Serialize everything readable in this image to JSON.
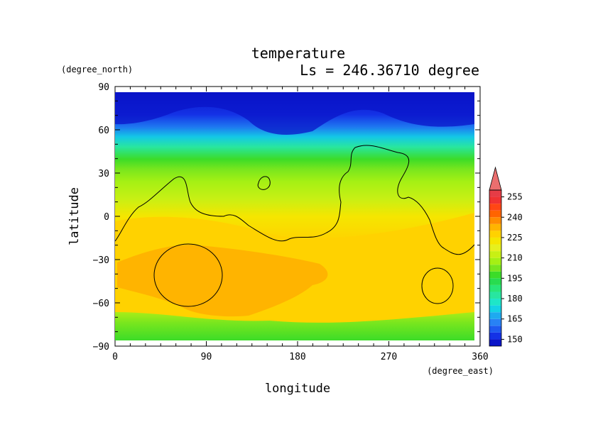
{
  "chart_data": {
    "type": "heatmap",
    "title": "temperature",
    "subtitle": "Ls = 246.36710 degree",
    "xlabel": "longitude",
    "ylabel": "latitude",
    "x_units": "(degree_east)",
    "y_units": "(degree_north)",
    "xlim": [
      0,
      360
    ],
    "ylim": [
      -90,
      90
    ],
    "x_ticks": [
      0,
      90,
      180,
      270,
      360
    ],
    "y_ticks": [
      90,
      60,
      30,
      0,
      -30,
      -60,
      -90
    ],
    "x_tick_labels": [
      "0",
      "90",
      "180",
      "270",
      "360"
    ],
    "y_tick_labels": [
      "90",
      "60",
      "30",
      "0",
      "−30",
      "−60",
      "−90"
    ],
    "colorbar": {
      "labels": [
        "150",
        "165",
        "180",
        "195",
        "210",
        "225",
        "240",
        "255"
      ],
      "levels": [
        145,
        150,
        155,
        160,
        165,
        170,
        175,
        180,
        185,
        190,
        195,
        200,
        205,
        210,
        215,
        220,
        225,
        230,
        235,
        240,
        245,
        250,
        255,
        260
      ],
      "colors": [
        "#0a14c8",
        "#1432e6",
        "#1e5af0",
        "#2882f5",
        "#1eaaf0",
        "#14d2e6",
        "#1ee6c8",
        "#28e6a0",
        "#28e678",
        "#28dc50",
        "#3cdc28",
        "#78e61e",
        "#a5f014",
        "#c8f014",
        "#e6f01e",
        "#f5e600",
        "#ffd200",
        "#ffb400",
        "#ff8c00",
        "#ff6400",
        "#ff4614",
        "#f03232",
        "#e63c46",
        "#eb6e6e"
      ],
      "extend": "max"
    },
    "contour_level_note": "",
    "grid": false
  }
}
